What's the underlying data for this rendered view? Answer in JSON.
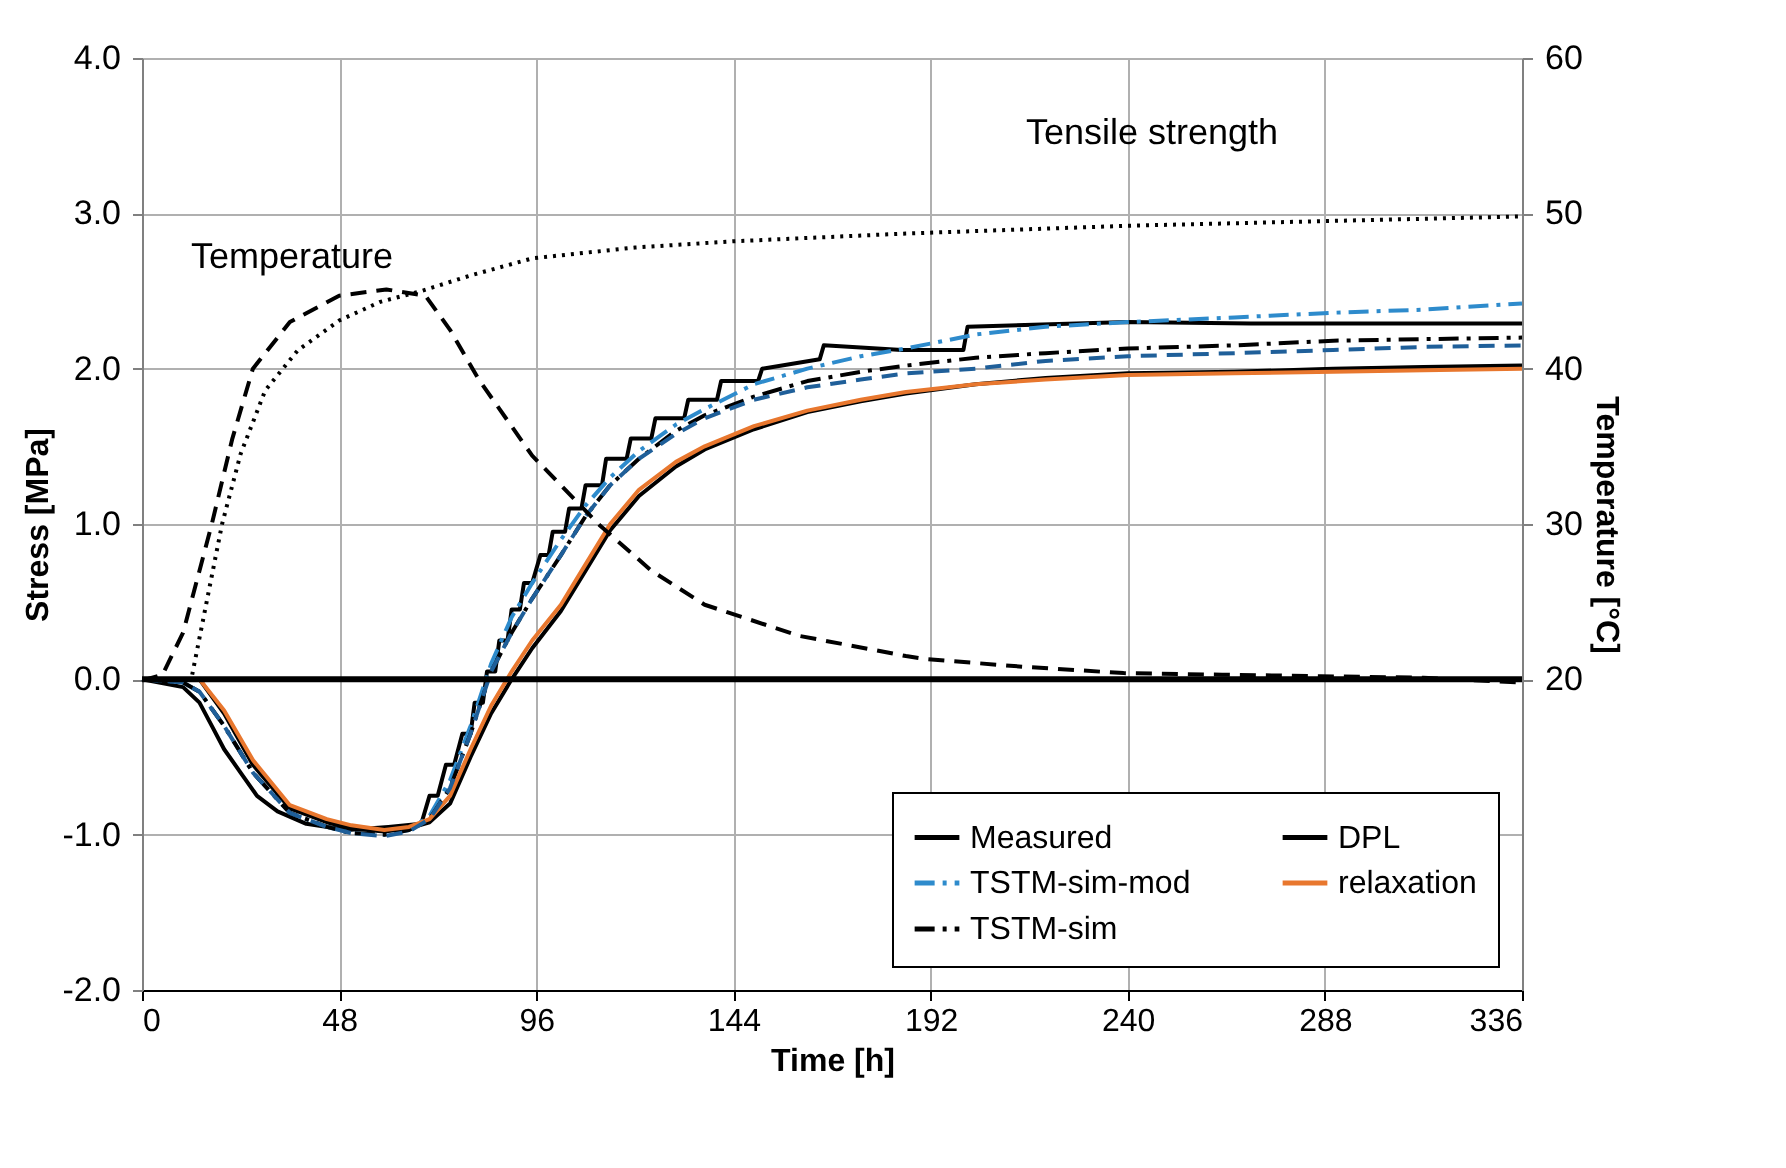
{
  "chart_data": {
    "type": "line",
    "xlabel": "Time [h]",
    "ylabel": "Stress [MPa]",
    "y2label": "Temperature [°C]",
    "x": [
      0,
      10,
      14,
      20,
      27,
      36,
      45,
      51,
      59,
      65,
      70,
      75,
      80,
      85,
      90,
      95,
      102,
      108,
      114,
      121,
      130,
      137,
      149,
      162,
      175,
      186,
      203,
      220,
      240,
      266,
      290,
      312,
      336
    ],
    "xlim": [
      0,
      336
    ],
    "xticks": [
      0,
      48,
      96,
      144,
      192,
      240,
      288,
      336
    ],
    "ylim": [
      -2,
      4
    ],
    "yticks": [
      {
        "value": -2,
        "label": "-2.0"
      },
      {
        "value": -1,
        "label": "-1.0"
      },
      {
        "value": 0,
        "label": "0.0"
      },
      {
        "value": 1,
        "label": "1.0"
      },
      {
        "value": 2,
        "label": "2.0"
      },
      {
        "value": 3,
        "label": "3.0"
      },
      {
        "value": 4,
        "label": "4.0"
      }
    ],
    "y2lim": [
      0,
      60
    ],
    "y2ticks": [
      20,
      30,
      40,
      50,
      60
    ],
    "grid": true,
    "legend": "bottom right",
    "ref_lines": [
      {
        "axis": "y",
        "value": 0,
        "color": "#000000"
      }
    ],
    "annotations": [
      "Temperature",
      "Tensile strength"
    ],
    "series": [
      {
        "name": "Measured",
        "color": "#000000",
        "line_style": "solid",
        "x": [
          0,
          10,
          14,
          17,
          20,
          24,
          28,
          33,
          40,
          50,
          60,
          68,
          70,
          72,
          74,
          76,
          78,
          80,
          81,
          83,
          84,
          86,
          87,
          89,
          90,
          92,
          93,
          95,
          97,
          99,
          100,
          103,
          104,
          107,
          108,
          112,
          113,
          118,
          119,
          124,
          125,
          132,
          133,
          140,
          141,
          150,
          151,
          165,
          166,
          185,
          200,
          201,
          240,
          270,
          300,
          336
        ],
        "values": [
          0,
          -0.05,
          -0.15,
          -0.3,
          -0.45,
          -0.6,
          -0.75,
          -0.85,
          -0.93,
          -0.97,
          -0.95,
          -0.93,
          -0.75,
          -0.75,
          -0.55,
          -0.55,
          -0.35,
          -0.35,
          -0.15,
          -0.15,
          0.05,
          0.05,
          0.25,
          0.25,
          0.45,
          0.45,
          0.62,
          0.62,
          0.8,
          0.8,
          0.95,
          0.95,
          1.1,
          1.1,
          1.25,
          1.25,
          1.42,
          1.42,
          1.55,
          1.55,
          1.68,
          1.68,
          1.8,
          1.8,
          1.92,
          1.92,
          2.0,
          2.06,
          2.15,
          2.12,
          2.12,
          2.27,
          2.3,
          2.29,
          2.29,
          2.29
        ]
      },
      {
        "name": "TSTM-sim-mod",
        "color": "#2e8bcc",
        "line_style": "dashdot",
        "values": [
          0,
          -0.02,
          -0.08,
          -0.3,
          -0.6,
          -0.86,
          -0.95,
          -0.99,
          -1.0,
          -0.97,
          -0.88,
          -0.65,
          -0.3,
          0.1,
          0.4,
          0.62,
          0.9,
          1.12,
          1.3,
          1.47,
          1.64,
          1.74,
          1.9,
          2.0,
          2.08,
          2.13,
          2.22,
          2.27,
          2.3,
          2.33,
          2.36,
          2.38,
          2.42
        ]
      },
      {
        "name": "TSTM-sim",
        "color": "#000000",
        "line_style": "dashdot",
        "values": [
          0,
          -0.02,
          -0.08,
          -0.3,
          -0.6,
          -0.86,
          -0.95,
          -0.99,
          -1.0,
          -0.97,
          -0.9,
          -0.7,
          -0.35,
          0.05,
          0.3,
          0.52,
          0.8,
          1.05,
          1.25,
          1.42,
          1.6,
          1.7,
          1.82,
          1.92,
          1.98,
          2.02,
          2.07,
          2.1,
          2.13,
          2.15,
          2.18,
          2.19,
          2.2
        ]
      },
      {
        "color": "#1f5f99",
        "line_style": "dashed",
        "values": [
          0,
          -0.02,
          -0.08,
          -0.3,
          -0.6,
          -0.86,
          -0.95,
          -0.99,
          -1.01,
          -0.98,
          -0.9,
          -0.7,
          -0.35,
          0.05,
          0.3,
          0.52,
          0.8,
          1.05,
          1.25,
          1.42,
          1.58,
          1.68,
          1.8,
          1.88,
          1.93,
          1.97,
          2.0,
          2.05,
          2.08,
          2.1,
          2.12,
          2.14,
          2.15
        ]
      },
      {
        "name": "DPL",
        "color": "#000000",
        "line_style": "solid",
        "values": [
          0,
          0,
          0,
          -0.22,
          -0.55,
          -0.83,
          -0.92,
          -0.96,
          -0.98,
          -0.96,
          -0.92,
          -0.8,
          -0.5,
          -0.22,
          0.0,
          0.2,
          0.44,
          0.7,
          0.96,
          1.18,
          1.37,
          1.48,
          1.61,
          1.72,
          1.79,
          1.84,
          1.9,
          1.94,
          1.97,
          1.98,
          2.0,
          2.01,
          2.02
        ]
      },
      {
        "name": "relaxation",
        "color": "#e8772e",
        "line_style": "solid",
        "values": [
          0,
          0,
          0,
          -0.2,
          -0.52,
          -0.81,
          -0.9,
          -0.94,
          -0.97,
          -0.95,
          -0.9,
          -0.75,
          -0.45,
          -0.17,
          0.05,
          0.25,
          0.48,
          0.74,
          1.0,
          1.22,
          1.4,
          1.5,
          1.63,
          1.73,
          1.8,
          1.85,
          1.9,
          1.93,
          1.96,
          1.97,
          1.98,
          1.99,
          2.0
        ]
      },
      {
        "color": "#000000",
        "line_style": "dotted",
        "x": [
          0,
          12,
          15,
          19.5,
          24,
          30,
          38,
          48,
          58,
          68,
          80,
          95,
          120,
          144,
          186,
          240,
          288,
          336
        ],
        "values": [
          0,
          0,
          0.4,
          1.0,
          1.45,
          1.86,
          2.12,
          2.31,
          2.43,
          2.5,
          2.6,
          2.71,
          2.78,
          2.82,
          2.87,
          2.92,
          2.95,
          2.98
        ]
      },
      {
        "color": "#000000",
        "line_style": "dashed",
        "axis": "y2",
        "x": [
          0,
          1,
          5,
          10,
          17,
          22,
          27,
          36,
          48,
          59.5,
          69,
          75,
          82,
          95,
          111.5,
          124,
          137,
          160,
          186,
          191,
          215,
          239,
          263,
          287,
          312,
          336
        ],
        "values": [
          20,
          20,
          20.3,
          23,
          30,
          35.5,
          40,
          43,
          44.7,
          45.1,
          44.7,
          42.5,
          39.3,
          34.4,
          29.9,
          27,
          24.8,
          22.8,
          21.5,
          21.3,
          20.8,
          20.4,
          20.3,
          20.2,
          20.1,
          19.8
        ]
      }
    ]
  }
}
